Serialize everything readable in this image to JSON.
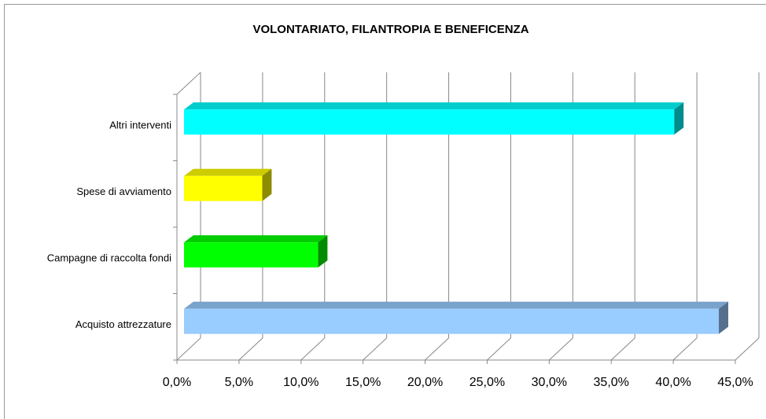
{
  "chart_data": {
    "type": "bar3d",
    "title": "VOLONTARIATO, FILANTROPIA E BENEFICENZA",
    "categories": [
      "Acquisto attrezzature",
      "Campagne di raccolta fondi",
      "Spese di avviamento",
      "Altri interventi"
    ],
    "values": [
      43.1,
      10.8,
      6.3,
      39.5
    ],
    "colors": [
      "#99ccff",
      "#00ff00",
      "#ffff00",
      "#00ffff"
    ],
    "xlim": [
      0,
      45
    ],
    "xticks": [
      {
        "value": 0,
        "label": "0,0%"
      },
      {
        "value": 5,
        "label": "5,0%"
      },
      {
        "value": 10,
        "label": "10,0%"
      },
      {
        "value": 15,
        "label": "15,0%"
      },
      {
        "value": 20,
        "label": "20,0%"
      },
      {
        "value": 25,
        "label": "25,0%"
      },
      {
        "value": 30,
        "label": "30,0%"
      },
      {
        "value": 35,
        "label": "35,0%"
      },
      {
        "value": 40,
        "label": "40,0%"
      },
      {
        "value": 45,
        "label": "45,0%"
      }
    ],
    "grid": true
  }
}
